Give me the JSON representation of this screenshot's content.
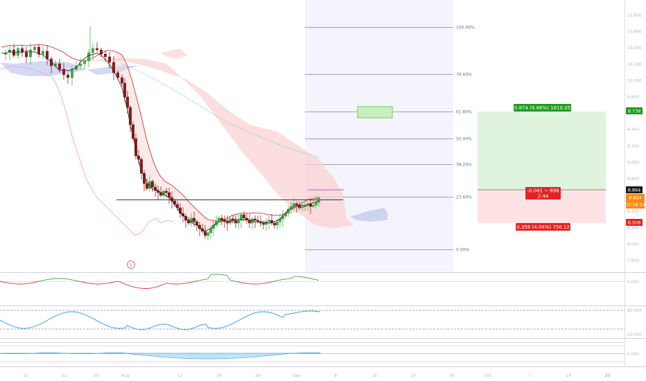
{
  "chart_data": {
    "type": "candlestick",
    "symbol_scale": "linear",
    "x_axis_labels": [
      "15",
      "22",
      "29",
      "Aug",
      "12",
      "19",
      "26",
      "Sep",
      "9",
      "16",
      "23",
      "30",
      "Oct",
      "7",
      "14",
      "21",
      "28"
    ],
    "y_axis_ticks": [
      "10.800",
      "10.600",
      "10.400",
      "10.200",
      "10.000",
      "9.800",
      "9.600",
      "9.400",
      "9.200",
      "9.000",
      "8.800",
      "8.600",
      "8.400",
      "8.200",
      "8.000",
      "7.800"
    ],
    "y_range": [
      7.8,
      10.8
    ],
    "candles_approx": [
      {
        "x": "15",
        "close": 10.2
      },
      {
        "x": "22",
        "close": 10.25
      },
      {
        "x": "29",
        "close": 10.3
      },
      {
        "x": "Aug",
        "close": 9.6
      },
      {
        "x": "12",
        "close": 8.5
      },
      {
        "x": "19",
        "close": 8.55
      },
      {
        "x": "26",
        "close": 8.56
      },
      {
        "x": "Sep",
        "close": 8.82
      }
    ],
    "fibonacci_levels": [
      {
        "label": "100.00%"
      },
      {
        "label": "78.60%"
      },
      {
        "label": "61.80%"
      },
      {
        "label": "50.00%"
      },
      {
        "label": "38.20%"
      },
      {
        "label": "23.60%"
      },
      {
        "label": "0.00%"
      }
    ],
    "position": {
      "target_label": "0.874 (9.86%) 1610.05",
      "stop_label": "0.358 (4.04%) 750.12",
      "center_label_1": "-0.041 ~ 698",
      "center_label_2": "2.44"
    },
    "price_tags": {
      "target": "9.738",
      "current": "8.864",
      "last": "8.824",
      "countdown": "02:16:14",
      "stop": "8.506"
    },
    "event_marker": "E",
    "indicator_ticks": {
      "momentum": [
        "0.000"
      ],
      "oscillator": [
        "80.000",
        "20.000"
      ],
      "histogram": [
        "0.000"
      ]
    },
    "colors": {
      "up": "#4caf50",
      "down": "#8b1d1d",
      "cloud_red": "#f5a0a0",
      "cloud_blue": "#b3bde8",
      "fib_line": "#7a85b5",
      "target_zone": "#d8f3d8",
      "stop_zone": "#fde2e2",
      "target_badge": "#2a9d2a",
      "stop_badge": "#e41f1f",
      "last_badge": "#f28c18",
      "oscillator": "#39a3e6"
    }
  }
}
